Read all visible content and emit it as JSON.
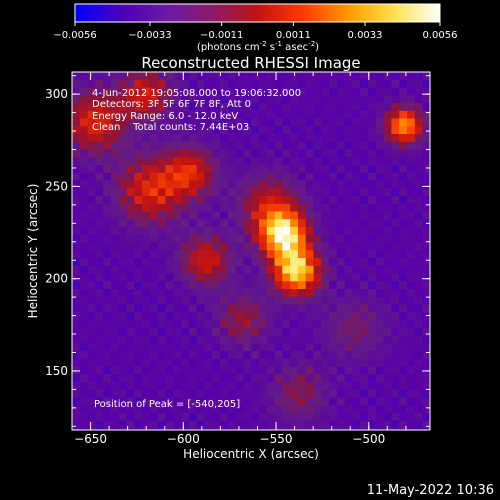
{
  "colorbar": {
    "ticks": [
      "-0.0056",
      "-0.0033",
      "-0.0011",
      "0.0011",
      "0.0033",
      "0.0056"
    ],
    "tick_values": [
      -0.0056,
      -0.0033,
      -0.0011,
      0.0011,
      0.0033,
      0.0056
    ],
    "units_prefix": "(photons cm",
    "units_exp1": "-2",
    "units_mid": " s",
    "units_exp2": "-1",
    "units_mid2": " asec",
    "units_exp3": "-2",
    "units_suffix": ")",
    "gradient": [
      "#0000ff",
      "#4b00b8",
      "#6a1aa6",
      "#8a1a6a",
      "#c01414",
      "#ff3b00",
      "#ff9a00",
      "#ffe14d",
      "#ffffff"
    ]
  },
  "chart_data": {
    "type": "heatmap",
    "title": "Reconstructed RHESSI Image",
    "xlabel": "Heliocentric X (arcsec)",
    "ylabel": "Heliocentric Y (arcsec)",
    "xlim": [
      -660,
      -467
    ],
    "ylim": [
      118,
      312
    ],
    "x_ticks": [
      -650,
      -600,
      -550,
      -500
    ],
    "y_ticks": [
      150,
      200,
      250,
      300
    ],
    "x_tick_labels": [
      "-650",
      "-600",
      "-550",
      "-500"
    ],
    "y_tick_labels": [
      "150",
      "200",
      "250",
      "300"
    ],
    "peak": [
      -540,
      205
    ],
    "annotations": [
      "4-Jun-2012 19:05:08.000 to 19:06:32.000",
      "Detectors: 3F 5F 6F 7F 8F, Att 0",
      "Energy Range: 6.0 - 12.0 keV",
      "Clean    Total counts: 7.44E+03"
    ],
    "peak_label": "Position of Peak = [-540,205]",
    "sources": [
      {
        "x": -548,
        "y": 226,
        "sigma": 9,
        "amp": 1.0
      },
      {
        "x": -541,
        "y": 206,
        "sigma": 9,
        "amp": 1.0
      },
      {
        "x": -556,
        "y": 242,
        "sigma": 12,
        "amp": 0.45
      },
      {
        "x": -620,
        "y": 250,
        "sigma": 13,
        "amp": 0.55
      },
      {
        "x": -598,
        "y": 260,
        "sigma": 10,
        "amp": 0.5
      },
      {
        "x": -590,
        "y": 212,
        "sigma": 10,
        "amp": 0.5
      },
      {
        "x": -650,
        "y": 287,
        "sigma": 12,
        "amp": 0.55
      },
      {
        "x": -622,
        "y": 302,
        "sigma": 10,
        "amp": 0.5
      },
      {
        "x": -483,
        "y": 285,
        "sigma": 7,
        "amp": 0.85
      },
      {
        "x": -540,
        "y": 140,
        "sigma": 11,
        "amp": 0.3
      },
      {
        "x": -510,
        "y": 175,
        "sigma": 12,
        "amp": 0.25
      },
      {
        "x": -570,
        "y": 180,
        "sigma": 10,
        "amp": 0.35
      }
    ]
  },
  "timestamp": "11-May-2022 10:36"
}
